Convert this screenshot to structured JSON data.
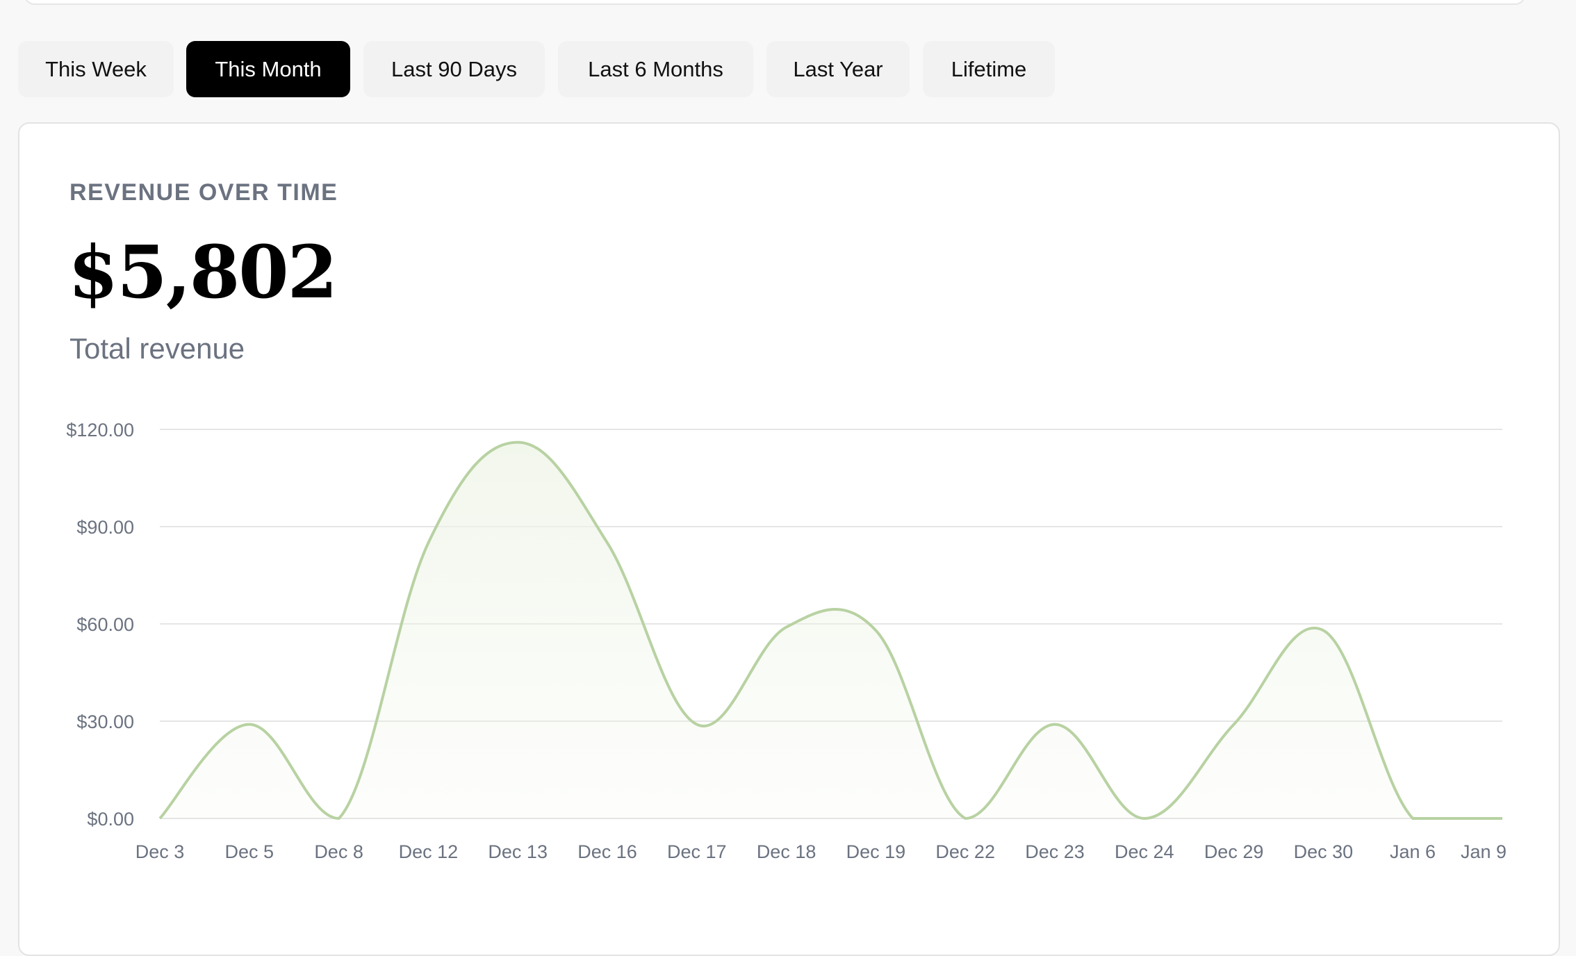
{
  "filters": {
    "tabs": [
      {
        "label": "This Week",
        "active": false
      },
      {
        "label": "This Month",
        "active": true
      },
      {
        "label": "Last 90 Days",
        "active": false
      },
      {
        "label": "Last 6 Months",
        "active": false
      },
      {
        "label": "Last Year",
        "active": false
      },
      {
        "label": "Lifetime",
        "active": false
      }
    ]
  },
  "card": {
    "eyebrow": "REVENUE OVER TIME",
    "total": "$5,802",
    "total_label": "Total revenue"
  },
  "colors": {
    "line": "#b8d2a2",
    "fill": "#eef4e6",
    "active_tab_bg": "#000000"
  },
  "chart_data": {
    "type": "area",
    "categories": [
      "Dec 3",
      "Dec 5",
      "Dec 8",
      "Dec 12",
      "Dec 13",
      "Dec 16",
      "Dec 17",
      "Dec 18",
      "Dec 19",
      "Dec 22",
      "Dec 23",
      "Dec 24",
      "Dec 29",
      "Dec 30",
      "Jan 6",
      "Jan 9"
    ],
    "series": [
      {
        "values": [
          0,
          29,
          0,
          85,
          116,
          85,
          29,
          59,
          58,
          0,
          29,
          0,
          29,
          58,
          0,
          0
        ]
      }
    ],
    "y_ticks": [
      "$0.00",
      "$30.00",
      "$60.00",
      "$90.00",
      "$120.00"
    ],
    "ylim": [
      0,
      120
    ],
    "grid": true,
    "legend": "none"
  }
}
